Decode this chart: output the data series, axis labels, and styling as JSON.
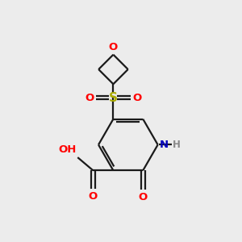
{
  "bg_color": "#ececec",
  "bond_color": "#1a1a1a",
  "o_color": "#ff0000",
  "n_color": "#0000bb",
  "s_color": "#aaaa00",
  "h_color": "#888888",
  "lw": 1.6,
  "fs": 9.5,
  "xlim": [
    0,
    10
  ],
  "ylim": [
    0,
    10
  ]
}
